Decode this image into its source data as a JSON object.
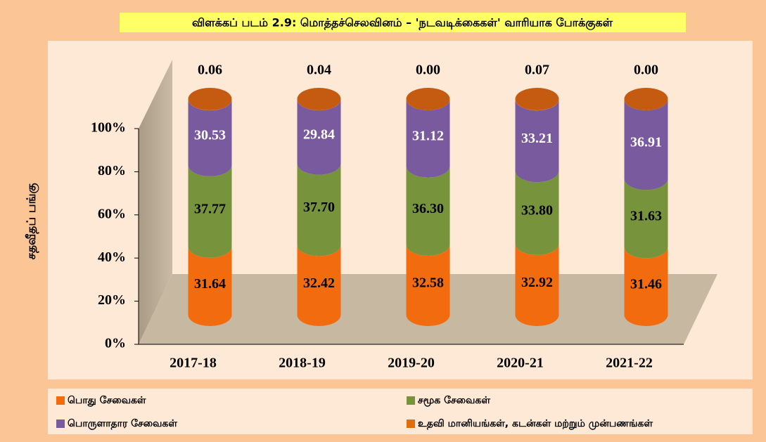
{
  "chart_data": {
    "type": "stacked_cylinder",
    "title": "விளக்கப் படம் 2.9: மொத்தச்செலவினம் – 'நடவடிக்கைகள்' வாரியாக போக்குகள்",
    "y_label": "சதவீதப் பங்கு",
    "categories": [
      "2017-18",
      "2018-19",
      "2019-20",
      "2020-21",
      "2021-22"
    ],
    "series": [
      {
        "name": "பொது சேவைகள்",
        "color": "#f26b0f",
        "values": [
          31.64,
          32.42,
          32.58,
          32.92,
          31.46
        ],
        "value_labels": [
          "31.64",
          "32.42",
          "32.58",
          "32.92",
          "31.46"
        ]
      },
      {
        "name": "சமூக சேவைகள்",
        "color": "#77933c",
        "values": [
          37.77,
          37.7,
          36.3,
          33.8,
          31.63
        ],
        "value_labels": [
          "37.77",
          "37.70",
          "36.30",
          "33.80",
          "31.63"
        ]
      },
      {
        "name": "பொருளாதார சேவைகள்",
        "color": "#7a5a9e",
        "values": [
          30.53,
          29.84,
          31.12,
          33.21,
          36.91
        ],
        "value_labels": [
          "30.53",
          "29.84",
          "31.12",
          "33.21",
          "36.91"
        ]
      },
      {
        "name": "உதவி மானியங்கள், கடன்கள் மற்றும் முன்பணங்கள்",
        "color": "#e36c0a",
        "values": [
          0.06,
          0.04,
          0.0,
          0.07,
          0.0
        ],
        "value_labels": [
          "0.06",
          "0.04",
          "0.00",
          "0.07",
          "0.00"
        ]
      }
    ],
    "ylim": [
      0,
      100
    ],
    "yticks": [
      {
        "value": 0,
        "label": "0%"
      },
      {
        "value": 20,
        "label": "20%"
      },
      {
        "value": 40,
        "label": "40%"
      },
      {
        "value": 60,
        "label": "60%"
      },
      {
        "value": 80,
        "label": "80%"
      },
      {
        "value": 100,
        "label": "100%"
      }
    ],
    "legend": "bottom"
  }
}
